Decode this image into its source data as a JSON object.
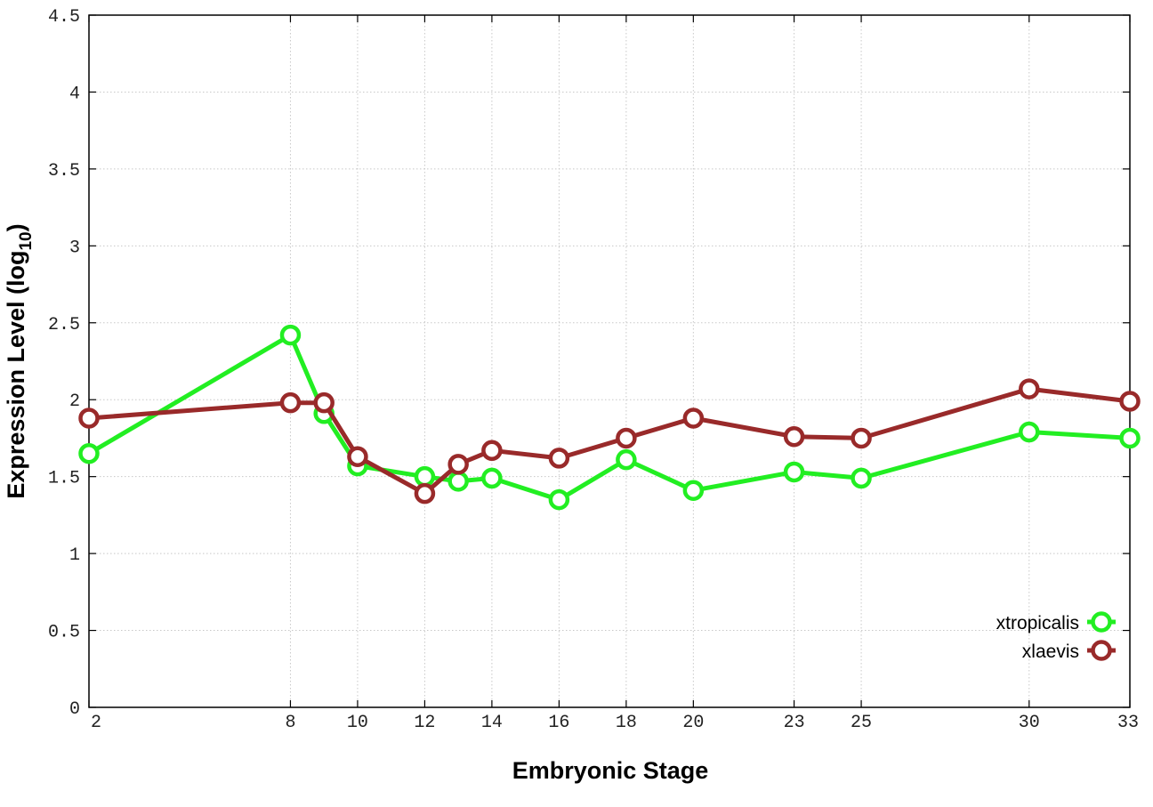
{
  "chart_data": {
    "type": "line",
    "title": "",
    "xlabel": "Embryonic Stage",
    "ylabel": {
      "main": "Expression Level (log",
      "sub": "10",
      "close": ")"
    },
    "x_ticks": [
      2,
      8,
      10,
      12,
      14,
      16,
      18,
      20,
      23,
      25,
      30,
      33
    ],
    "y_ticks": [
      "0",
      "0.5",
      "1",
      "1.5",
      "2",
      "2.5",
      "3",
      "3.5",
      "4",
      "4.5"
    ],
    "xlim": [
      2,
      33
    ],
    "ylim": [
      0,
      4.5
    ],
    "grid": true,
    "legend_position": "bottom-right",
    "series": [
      {
        "name": "xtropicalis",
        "color": "#22ee22",
        "x": [
          2,
          8,
          9,
          10,
          12,
          13,
          14,
          16,
          18,
          20,
          23,
          25,
          30,
          33
        ],
        "y": [
          1.65,
          2.42,
          1.91,
          1.57,
          1.5,
          1.47,
          1.49,
          1.35,
          1.61,
          1.41,
          1.53,
          1.49,
          1.79,
          1.75
        ]
      },
      {
        "name": "xlaevis",
        "color": "#992a2a",
        "x": [
          2,
          8,
          9,
          10,
          12,
          13,
          14,
          16,
          18,
          20,
          23,
          25,
          30,
          33
        ],
        "y": [
          1.88,
          1.98,
          1.98,
          1.63,
          1.39,
          1.58,
          1.67,
          1.62,
          1.75,
          1.88,
          1.76,
          1.75,
          2.07,
          1.99
        ]
      }
    ]
  }
}
